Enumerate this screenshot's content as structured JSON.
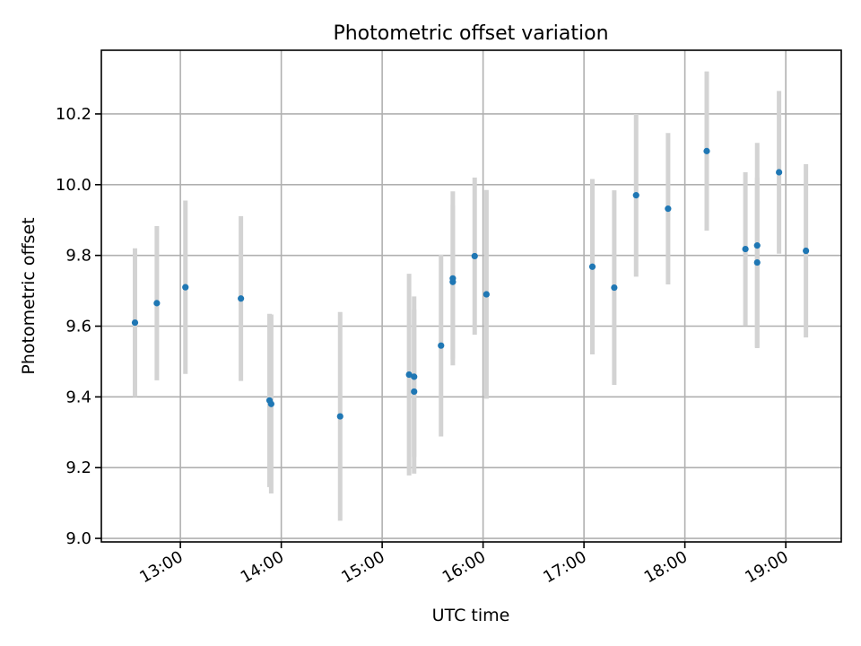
{
  "chart_data": {
    "type": "scatter",
    "title": "Photometric offset variation",
    "xlabel": "UTC time",
    "ylabel": "Photometric offset",
    "x_axis_type": "time",
    "xlim": [
      "12:13",
      "19:33"
    ],
    "ylim": [
      8.99,
      10.38
    ],
    "x_ticks": [
      "13:00",
      "14:00",
      "15:00",
      "16:00",
      "17:00",
      "18:00",
      "19:00"
    ],
    "y_ticks": [
      9.0,
      9.2,
      9.4,
      9.6,
      9.8,
      10.0,
      10.2
    ],
    "y_tick_labels": [
      "9.0",
      "9.2",
      "9.4",
      "9.6",
      "9.8",
      "10.0",
      "10.2"
    ],
    "grid": true,
    "error_bar_color": "#d3d3d3",
    "marker_color": "#1f77b4",
    "points": [
      {
        "x": "12:33",
        "y": 9.61,
        "err": 0.21
      },
      {
        "x": "12:46",
        "y": 9.665,
        "err": 0.218
      },
      {
        "x": "13:03",
        "y": 9.71,
        "err": 0.245
      },
      {
        "x": "13:36",
        "y": 9.678,
        "err": 0.233
      },
      {
        "x": "13:53",
        "y": 9.39,
        "err": 0.245
      },
      {
        "x": "13:54",
        "y": 9.38,
        "err": 0.253
      },
      {
        "x": "14:35",
        "y": 9.345,
        "err": 0.295
      },
      {
        "x": "15:16",
        "y": 9.463,
        "err": 0.285
      },
      {
        "x": "15:19",
        "y": 9.415,
        "err": 0.232
      },
      {
        "x": "15:19",
        "y": 9.457,
        "err": 0.227
      },
      {
        "x": "15:35",
        "y": 9.545,
        "err": 0.257
      },
      {
        "x": "15:42",
        "y": 9.725,
        "err": 0.217
      },
      {
        "x": "15:42",
        "y": 9.735,
        "err": 0.246
      },
      {
        "x": "15:55",
        "y": 9.798,
        "err": 0.222
      },
      {
        "x": "16:02",
        "y": 9.69,
        "err": 0.295
      },
      {
        "x": "17:05",
        "y": 9.768,
        "err": 0.248
      },
      {
        "x": "17:18",
        "y": 9.709,
        "err": 0.275
      },
      {
        "x": "17:31",
        "y": 9.97,
        "err": 0.23
      },
      {
        "x": "17:50",
        "y": 9.932,
        "err": 0.214
      },
      {
        "x": "18:13",
        "y": 10.095,
        "err": 0.225
      },
      {
        "x": "18:36",
        "y": 9.818,
        "err": 0.217
      },
      {
        "x": "18:43",
        "y": 9.828,
        "err": 0.29
      },
      {
        "x": "18:43",
        "y": 9.78,
        "err": 0.24
      },
      {
        "x": "18:56",
        "y": 10.035,
        "err": 0.23
      },
      {
        "x": "19:12",
        "y": 9.813,
        "err": 0.245
      }
    ]
  }
}
